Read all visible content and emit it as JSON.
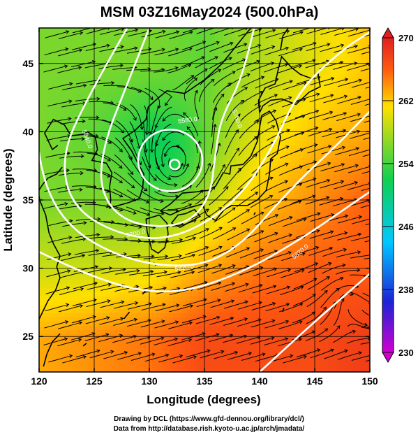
{
  "chart_data": {
    "type": "heatmap",
    "title": "MSM 03Z16May2024 (500.0hPa)",
    "xlabel": "Longitude (degrees)",
    "ylabel": "Latitude  (degrees)",
    "xlim": [
      120,
      150
    ],
    "ylim": [
      22.4,
      47.6
    ],
    "xticks": [
      120,
      125,
      130,
      135,
      140,
      145,
      150
    ],
    "yticks": [
      25,
      30,
      35,
      40,
      45
    ],
    "grid": true,
    "colorbar": {
      "ticks": [
        230,
        238,
        246,
        254,
        262,
        270
      ],
      "range": [
        230,
        270
      ],
      "colors": [
        "#d100d1",
        "#1e22d6",
        "#00c6ff",
        "#10d050",
        "#ffe000",
        "#ff5a10",
        "#e02020"
      ]
    },
    "temperature_field": {
      "x": [
        120,
        125,
        130,
        135,
        140,
        145,
        150
      ],
      "y": [
        25,
        30,
        35,
        40,
        45
      ],
      "values": [
        [
          263,
          264,
          265,
          267,
          267,
          267,
          268
        ],
        [
          259,
          259,
          260,
          263,
          265,
          266,
          266
        ],
        [
          256,
          256,
          256,
          259,
          262,
          264,
          266
        ],
        [
          256,
          255,
          253,
          256,
          260,
          262,
          263
        ],
        [
          256,
          256,
          256,
          255,
          258,
          260,
          262
        ]
      ]
    },
    "contour_labels": [
      "5580.0",
      "5640.0",
      "5700.0",
      "5760.0",
      "5820.0",
      "5820.0"
    ],
    "low_center": {
      "lon": 132.3,
      "lat": 37.6
    },
    "footer": [
      "Drawing by DCL (https://www.gfd-dennou.org/library/dcl/)",
      "Data from http://database.rish.kyoto-u.ac.jp/arch/jmadata/"
    ]
  }
}
